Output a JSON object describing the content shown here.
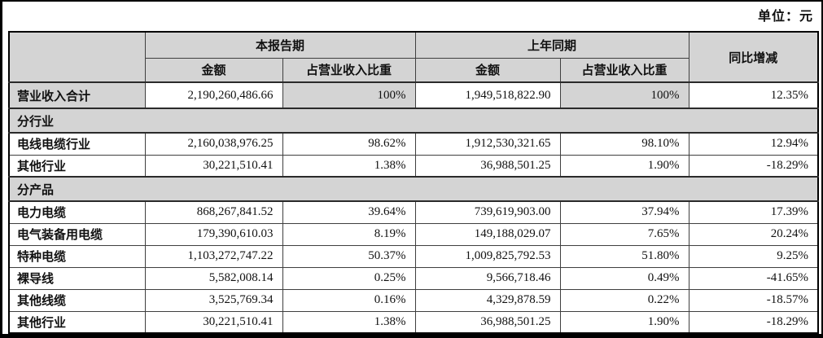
{
  "unit_label": "单位：元",
  "colors": {
    "header_bg": "#d4d4d4",
    "shaded_cell_bg": "#d4d4d4",
    "border": "#3f3f3f",
    "outer_frame": "#000000",
    "text": "#111111"
  },
  "table": {
    "header": {
      "current_period": "本报告期",
      "prior_period": "上年同期",
      "yoy_change": "同比增减",
      "amount": "金额",
      "pct_of_revenue": "占营业收入比重"
    },
    "rows": [
      {
        "type": "data",
        "highlight": true,
        "label": "营业收入合计",
        "cur_amount": "2,190,260,486.66",
        "cur_pct": "100%",
        "prior_amount": "1,949,518,822.90",
        "prior_pct": "100%",
        "yoy": "12.35%"
      },
      {
        "type": "section",
        "label": "分行业"
      },
      {
        "type": "data",
        "label": "电线电缆行业",
        "cur_amount": "2,160,038,976.25",
        "cur_pct": "98.62%",
        "prior_amount": "1,912,530,321.65",
        "prior_pct": "98.10%",
        "yoy": "12.94%"
      },
      {
        "type": "data",
        "label": "其他行业",
        "cur_amount": "30,221,510.41",
        "cur_pct": "1.38%",
        "prior_amount": "36,988,501.25",
        "prior_pct": "1.90%",
        "yoy": "-18.29%"
      },
      {
        "type": "section",
        "label": "分产品"
      },
      {
        "type": "data",
        "label": "电力电缆",
        "cur_amount": "868,267,841.52",
        "cur_pct": "39.64%",
        "prior_amount": "739,619,903.00",
        "prior_pct": "37.94%",
        "yoy": "17.39%"
      },
      {
        "type": "data",
        "label": "电气装备用电缆",
        "cur_amount": "179,390,610.03",
        "cur_pct": "8.19%",
        "prior_amount": "149,188,029.07",
        "prior_pct": "7.65%",
        "yoy": "20.24%"
      },
      {
        "type": "data",
        "label": "特种电缆",
        "cur_amount": "1,103,272,747.22",
        "cur_pct": "50.37%",
        "prior_amount": "1,009,825,792.53",
        "prior_pct": "51.80%",
        "yoy": "9.25%"
      },
      {
        "type": "data",
        "label": "裸导线",
        "cur_amount": "5,582,008.14",
        "cur_pct": "0.25%",
        "prior_amount": "9,566,718.46",
        "prior_pct": "0.49%",
        "yoy": "-41.65%"
      },
      {
        "type": "data",
        "label": "其他线缆",
        "cur_amount": "3,525,769.34",
        "cur_pct": "0.16%",
        "prior_amount": "4,329,878.59",
        "prior_pct": "0.22%",
        "yoy": "-18.57%"
      },
      {
        "type": "data",
        "label": "其他行业",
        "cur_amount": "30,221,510.41",
        "cur_pct": "1.38%",
        "prior_amount": "36,988,501.25",
        "prior_pct": "1.90%",
        "yoy": "-18.29%"
      }
    ]
  }
}
